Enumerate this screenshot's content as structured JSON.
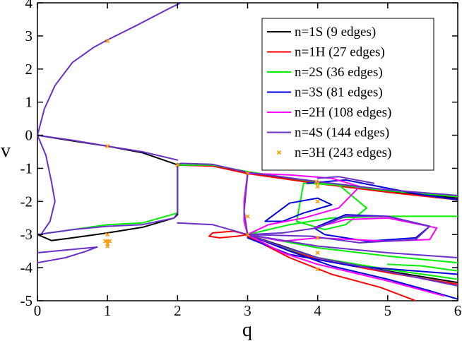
{
  "chart_data": {
    "type": "line",
    "xlabel": "q",
    "ylabel": "v",
    "xlim": [
      0,
      6
    ],
    "ylim": [
      -5,
      4
    ],
    "xticks": [
      0,
      1,
      2,
      3,
      4,
      5,
      6
    ],
    "yticks": [
      4,
      3,
      2,
      1,
      0,
      -1,
      -2,
      -3,
      -4,
      -5
    ],
    "legend_position": "top-right",
    "series": [
      {
        "name": "n=1S (9 edges)",
        "color": "#000000",
        "style": "line",
        "curves": [
          [
            [
              0,
              0
            ],
            [
              0.5,
              -0.17
            ],
            [
              1,
              -0.33
            ],
            [
              1.5,
              -0.53
            ],
            [
              1.98,
              -0.88
            ],
            [
              2.0,
              -0.9
            ]
          ],
          [
            [
              2.0,
              -0.9
            ],
            [
              2.0,
              -2.4
            ]
          ],
          [
            [
              2.0,
              -2.4
            ],
            [
              1.95,
              -2.5
            ],
            [
              1.5,
              -2.78
            ],
            [
              1.0,
              -2.95
            ],
            [
              0.5,
              -3.1
            ],
            [
              0.2,
              -3.18
            ],
            [
              0,
              -3.0
            ]
          ],
          [
            [
              2.0,
              -0.9
            ],
            [
              2.5,
              -0.92
            ],
            [
              3.0,
              -1.15
            ],
            [
              4.0,
              -1.45
            ],
            [
              5.0,
              -1.7
            ],
            [
              6.0,
              -1.9
            ]
          ],
          [
            [
              3.0,
              -3.0
            ],
            [
              3.5,
              -3.35
            ],
            [
              4.0,
              -3.7
            ],
            [
              5.0,
              -4.1
            ],
            [
              6.0,
              -4.45
            ]
          ]
        ]
      },
      {
        "name": "n=1H (27 edges)",
        "color": "#ff0000",
        "style": "line",
        "curves": [
          [
            [
              2.0,
              -0.9
            ],
            [
              2.5,
              -0.93
            ],
            [
              3.0,
              -1.16
            ],
            [
              4.0,
              -1.46
            ],
            [
              5.0,
              -1.72
            ],
            [
              6.0,
              -1.95
            ]
          ],
          [
            [
              3.0,
              -3.0
            ],
            [
              3.5,
              -3.4
            ],
            [
              4.0,
              -3.75
            ],
            [
              5.0,
              -4.15
            ],
            [
              6.0,
              -4.5
            ]
          ],
          [
            [
              3.0,
              -3.05
            ],
            [
              3.6,
              -3.7
            ],
            [
              4.2,
              -4.2
            ],
            [
              4.9,
              -4.6
            ],
            [
              5.4,
              -5.0
            ]
          ],
          [
            [
              3.0,
              -3.0
            ],
            [
              2.8,
              -2.9
            ],
            [
              2.5,
              -2.95
            ],
            [
              2.45,
              -3.05
            ],
            [
              2.6,
              -3.1
            ],
            [
              2.85,
              -3.05
            ],
            [
              3.0,
              -3.0
            ]
          ]
        ]
      },
      {
        "name": "n=2S (36 edges)",
        "color": "#00ee00",
        "style": "line",
        "curves": [
          [
            [
              2.0,
              -0.9
            ],
            [
              2.5,
              -0.9
            ],
            [
              3.0,
              -1.1
            ],
            [
              4.0,
              -1.42
            ],
            [
              5.0,
              -1.68
            ],
            [
              6.0,
              -1.85
            ]
          ],
          [
            [
              3.0,
              -3.0
            ],
            [
              3.6,
              -3.45
            ],
            [
              4.0,
              -3.7
            ],
            [
              5.0,
              -4.05
            ],
            [
              6.0,
              -4.35
            ]
          ],
          [
            [
              3.8,
              -1.45
            ],
            [
              4.3,
              -1.5
            ],
            [
              4.7,
              -2.2
            ],
            [
              4.4,
              -2.7
            ],
            [
              4.1,
              -2.85
            ],
            [
              3.7,
              -2.6
            ],
            [
              3.8,
              -1.45
            ]
          ],
          [
            [
              3.0,
              -3.0
            ],
            [
              3.6,
              -2.7
            ],
            [
              4.2,
              -2.5
            ],
            [
              5.0,
              -2.45
            ],
            [
              6.0,
              -2.45
            ]
          ],
          [
            [
              3.0,
              -3.0
            ],
            [
              4.0,
              -3.4
            ],
            [
              5.0,
              -3.65
            ],
            [
              6.0,
              -3.85
            ]
          ],
          [
            [
              5.0,
              -3.9
            ],
            [
              5.5,
              -3.95
            ],
            [
              6.0,
              -4.1
            ]
          ],
          [
            [
              0,
              -3.0
            ],
            [
              0.5,
              -2.85
            ],
            [
              1.0,
              -2.7
            ],
            [
              1.5,
              -2.65
            ],
            [
              2.0,
              -2.35
            ],
            [
              2.0,
              -0.85
            ]
          ]
        ]
      },
      {
        "name": "n=3S (81 edges)",
        "color": "#0000dd",
        "style": "line",
        "curves": [
          [
            [
              3.0,
              -3.0
            ],
            [
              3.6,
              -3.5
            ],
            [
              4.2,
              -3.95
            ],
            [
              5.0,
              -4.35
            ],
            [
              5.6,
              -4.7
            ],
            [
              6.0,
              -4.95
            ]
          ],
          [
            [
              3.25,
              -2.6
            ],
            [
              3.6,
              -2.05
            ],
            [
              4.0,
              -1.9
            ],
            [
              4.2,
              -2.1
            ],
            [
              3.8,
              -2.35
            ],
            [
              3.5,
              -2.6
            ],
            [
              3.25,
              -2.6
            ]
          ],
          [
            [
              3.85,
              -1.45
            ],
            [
              4.4,
              -1.35
            ],
            [
              5.0,
              -1.6
            ],
            [
              5.5,
              -1.8
            ],
            [
              6.0,
              -1.95
            ]
          ],
          [
            [
              3.95,
              -2.8
            ],
            [
              4.4,
              -2.4
            ],
            [
              5.0,
              -2.45
            ],
            [
              5.6,
              -2.75
            ],
            [
              5.4,
              -3.1
            ],
            [
              4.7,
              -3.2
            ],
            [
              4.1,
              -3.0
            ],
            [
              3.95,
              -2.8
            ]
          ],
          [
            [
              3.0,
              -3.1
            ],
            [
              3.6,
              -3.6
            ],
            [
              4.5,
              -3.95
            ],
            [
              6.0,
              -4.2
            ]
          ]
        ]
      },
      {
        "name": "n=2H (108 edges)",
        "color": "#ff00ff",
        "style": "line",
        "curves": [
          [
            [
              3.0,
              -1.15
            ],
            [
              2.95,
              -2.0
            ],
            [
              2.95,
              -2.6
            ],
            [
              3.0,
              -3.0
            ]
          ],
          [
            [
              3.0,
              -3.0
            ],
            [
              3.5,
              -3.55
            ],
            [
              4.0,
              -3.9
            ],
            [
              5.0,
              -4.4
            ],
            [
              5.8,
              -4.85
            ]
          ],
          [
            [
              3.0,
              -3.0
            ],
            [
              3.5,
              -3.2
            ],
            [
              4.0,
              -3.1
            ],
            [
              4.5,
              -3.15
            ],
            [
              5.0,
              -3.2
            ],
            [
              5.6,
              -3.15
            ],
            [
              5.7,
              -2.8
            ],
            [
              5.0,
              -2.5
            ],
            [
              4.4,
              -2.55
            ],
            [
              3.95,
              -2.8
            ]
          ],
          [
            [
              3.0,
              -1.15
            ],
            [
              3.6,
              -1.2
            ],
            [
              4.2,
              -1.3
            ],
            [
              4.6,
              -1.55
            ],
            [
              4.3,
              -2.2
            ],
            [
              3.8,
              -2.5
            ],
            [
              3.3,
              -2.7
            ],
            [
              3.0,
              -3.0
            ]
          ]
        ]
      },
      {
        "name": "n=4S (144 edges)",
        "color": "#6a30c8",
        "style": "line",
        "curves": [
          [
            [
              0,
              0
            ],
            [
              0.1,
              0.8
            ],
            [
              0.25,
              1.5
            ],
            [
              0.5,
              2.2
            ],
            [
              0.8,
              2.65
            ],
            [
              1.0,
              2.88
            ],
            [
              1.4,
              3.3
            ],
            [
              1.9,
              3.85
            ],
            [
              2.05,
              4.0
            ]
          ],
          [
            [
              0,
              0
            ],
            [
              0.5,
              -0.15
            ],
            [
              1.0,
              -0.33
            ],
            [
              1.5,
              -0.5
            ],
            [
              2.0,
              -0.75
            ]
          ],
          [
            [
              0,
              0
            ],
            [
              0.12,
              -0.6
            ],
            [
              0.2,
              -1.4
            ],
            [
              0.25,
              -2.0
            ],
            [
              0.18,
              -2.6
            ],
            [
              0.05,
              -3.0
            ]
          ],
          [
            [
              0,
              -3.0
            ],
            [
              0.5,
              -2.85
            ],
            [
              1.0,
              -2.75
            ],
            [
              1.5,
              -2.7
            ],
            [
              1.95,
              -2.5
            ],
            [
              2.0,
              -2.35
            ]
          ],
          [
            [
              2.0,
              -0.88
            ],
            [
              2.0,
              -2.35
            ]
          ],
          [
            [
              2.0,
              -0.88
            ],
            [
              2.05,
              -0.85
            ],
            [
              2.5,
              -0.88
            ],
            [
              3.0,
              -1.12
            ],
            [
              4.0,
              -1.4
            ],
            [
              5.0,
              -1.65
            ],
            [
              6.0,
              -1.82
            ]
          ],
          [
            [
              2.0,
              -2.65
            ],
            [
              2.5,
              -2.7
            ],
            [
              3.0,
              -3.0
            ]
          ],
          [
            [
              3.0,
              -3.0
            ],
            [
              3.4,
              -3.3
            ],
            [
              4.0,
              -3.7
            ],
            [
              5.0,
              -4.12
            ],
            [
              6.0,
              -4.55
            ]
          ],
          [
            [
              3.0,
              -1.2
            ],
            [
              2.95,
              -2.3
            ],
            [
              3.0,
              -3.0
            ]
          ],
          [
            [
              3.0,
              -3.0
            ],
            [
              3.5,
              -2.95
            ],
            [
              4.0,
              -2.8
            ],
            [
              4.4,
              -2.45
            ],
            [
              5.0,
              -2.45
            ],
            [
              5.6,
              -2.75
            ],
            [
              5.4,
              -3.15
            ],
            [
              4.6,
              -3.25
            ],
            [
              3.9,
              -3.05
            ],
            [
              3.0,
              -3.0
            ]
          ],
          [
            [
              0,
              -3.55
            ],
            [
              0.5,
              -3.45
            ],
            [
              0.85,
              -3.38
            ]
          ],
          [
            [
              0,
              -3.85
            ],
            [
              0.4,
              -3.7
            ],
            [
              0.7,
              -3.5
            ],
            [
              0.85,
              -3.38
            ]
          ],
          [
            [
              3.0,
              -3.0
            ],
            [
              4.0,
              -3.35
            ],
            [
              5.0,
              -3.55
            ],
            [
              6.0,
              -3.7
            ]
          ],
          [
            [
              4.0,
              -1.3
            ],
            [
              4.3,
              -1.25
            ],
            [
              4.8,
              -1.45
            ]
          ]
        ]
      },
      {
        "name": "n=3H (243 edges)",
        "color": "#ff9900",
        "style": "marker",
        "points": [
          [
            1.0,
            2.85
          ],
          [
            1.0,
            -0.33
          ],
          [
            1.0,
            -3.0
          ],
          [
            1.0,
            -3.2
          ],
          [
            1.0,
            -3.28
          ],
          [
            1.0,
            -3.35
          ],
          [
            0.97,
            -3.2
          ],
          [
            1.03,
            -3.2
          ],
          [
            2.0,
            -0.9
          ],
          [
            3.0,
            -1.15
          ],
          [
            3.0,
            -2.45
          ],
          [
            3.0,
            -3.0
          ],
          [
            4.0,
            -1.45
          ],
          [
            4.0,
            -1.55
          ],
          [
            3.98,
            -1.4
          ],
          [
            4.0,
            -2.0
          ],
          [
            4.0,
            -3.1
          ],
          [
            4.0,
            -3.55
          ],
          [
            4.0,
            -4.05
          ]
        ]
      }
    ]
  }
}
